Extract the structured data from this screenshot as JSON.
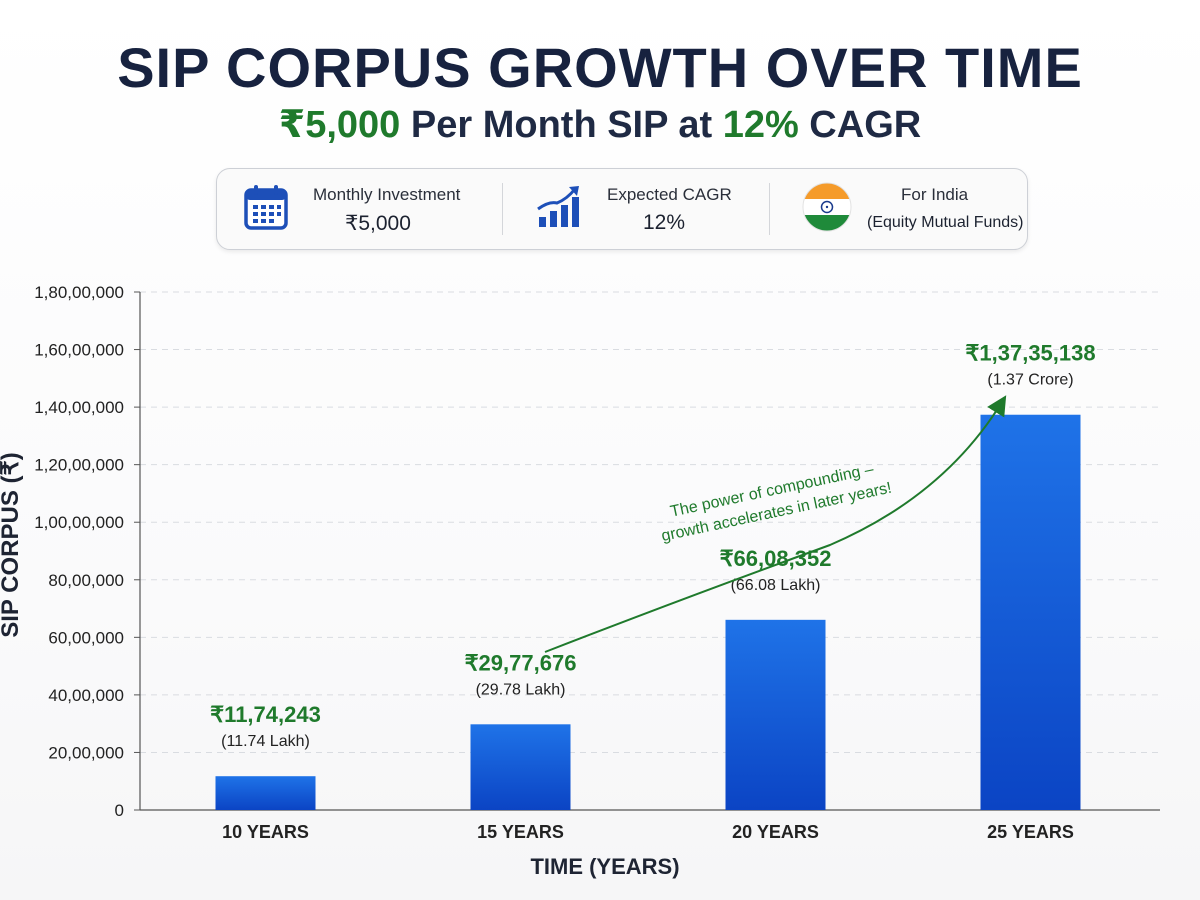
{
  "header": {
    "title": "SIP CORPUS GROWTH OVER TIME",
    "subtitle_amount": "₹5,000",
    "subtitle_mid": " Per Month SIP at ",
    "subtitle_rate": "12%",
    "subtitle_end": " CAGR"
  },
  "info": {
    "investment_label": "Monthly Investment",
    "investment_value": "₹5,000",
    "cagr_label": "Expected CAGR",
    "cagr_value": "12%",
    "region_label": "For India",
    "region_value": "(Equity Mutual Funds)",
    "icons": [
      "calendar-icon",
      "growth-chart-icon",
      "india-flag-icon"
    ]
  },
  "colors": {
    "bar_top": "#1f73e8",
    "bar_bottom": "#0b44c4",
    "accent_green": "#1f7a2c",
    "title_navy": "#17223f"
  },
  "chart_data": {
    "type": "bar",
    "title": "SIP CORPUS GROWTH OVER TIME",
    "xlabel": "TIME (YEARS)",
    "ylabel": "SIP CORPUS (₹)",
    "ylim": [
      0,
      18000000
    ],
    "yticks": [
      0,
      2000000,
      4000000,
      6000000,
      8000000,
      10000000,
      12000000,
      14000000,
      16000000,
      18000000
    ],
    "ytick_labels": [
      "0",
      "20,00,000",
      "40,00,000",
      "60,00,000",
      "80,00,000",
      "1,00,00,000",
      "1,20,00,000",
      "1,40,00,000",
      "1,60,00,000",
      "1,80,00,000"
    ],
    "grid": true,
    "categories": [
      "10 YEARS",
      "15 YEARS",
      "20 YEARS",
      "25 YEARS"
    ],
    "values": [
      1174243,
      2977676,
      6608352,
      13735138
    ],
    "value_labels": [
      "₹11,74,243",
      "₹29,77,676",
      "₹66,08,352",
      "₹1,37,35,138"
    ],
    "value_sublabels": [
      "(11.74 Lakh)",
      "(29.78 Lakh)",
      "(66.08 Lakh)",
      "(1.37 Crore)"
    ],
    "annotation": [
      "The power of compounding –",
      "growth accelerates in later years!"
    ]
  }
}
